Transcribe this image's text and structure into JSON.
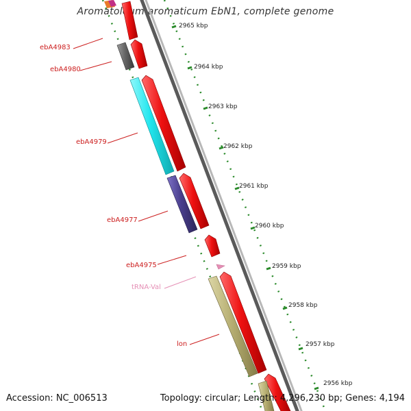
{
  "title": "Aromatoleum aromaticum EbN1, complete genome",
  "footer": {
    "accession": "Accession: NC_006513",
    "summary": "Topology: circular; Length: 4,296,230 bp; Genes: 4,194"
  },
  "gene_labels": [
    "ebA4983",
    "ebA4980",
    "ebA4979",
    "ebA4977",
    "ebA4975",
    "tRNA-Val",
    "lon"
  ],
  "scale_ticks": [
    "2965 kbp",
    "2964 kbp",
    "2963 kbp",
    "2962 kbp",
    "2961 kbp",
    "2960 kbp",
    "2959 kbp",
    "2958 kbp",
    "2957 kbp",
    "2956 kbp"
  ],
  "colors": {
    "cds_forward": "#ee1111",
    "backbone": "#888888",
    "ruler": "#2a8a2a",
    "gene_label": "#cc1f1f",
    "trna": "#e58fb5",
    "cog_gray": "#666666",
    "cog_cyan": "#22e6ee",
    "cog_purple": "#4a3f8e",
    "cog_khaki": "#b8b074"
  }
}
